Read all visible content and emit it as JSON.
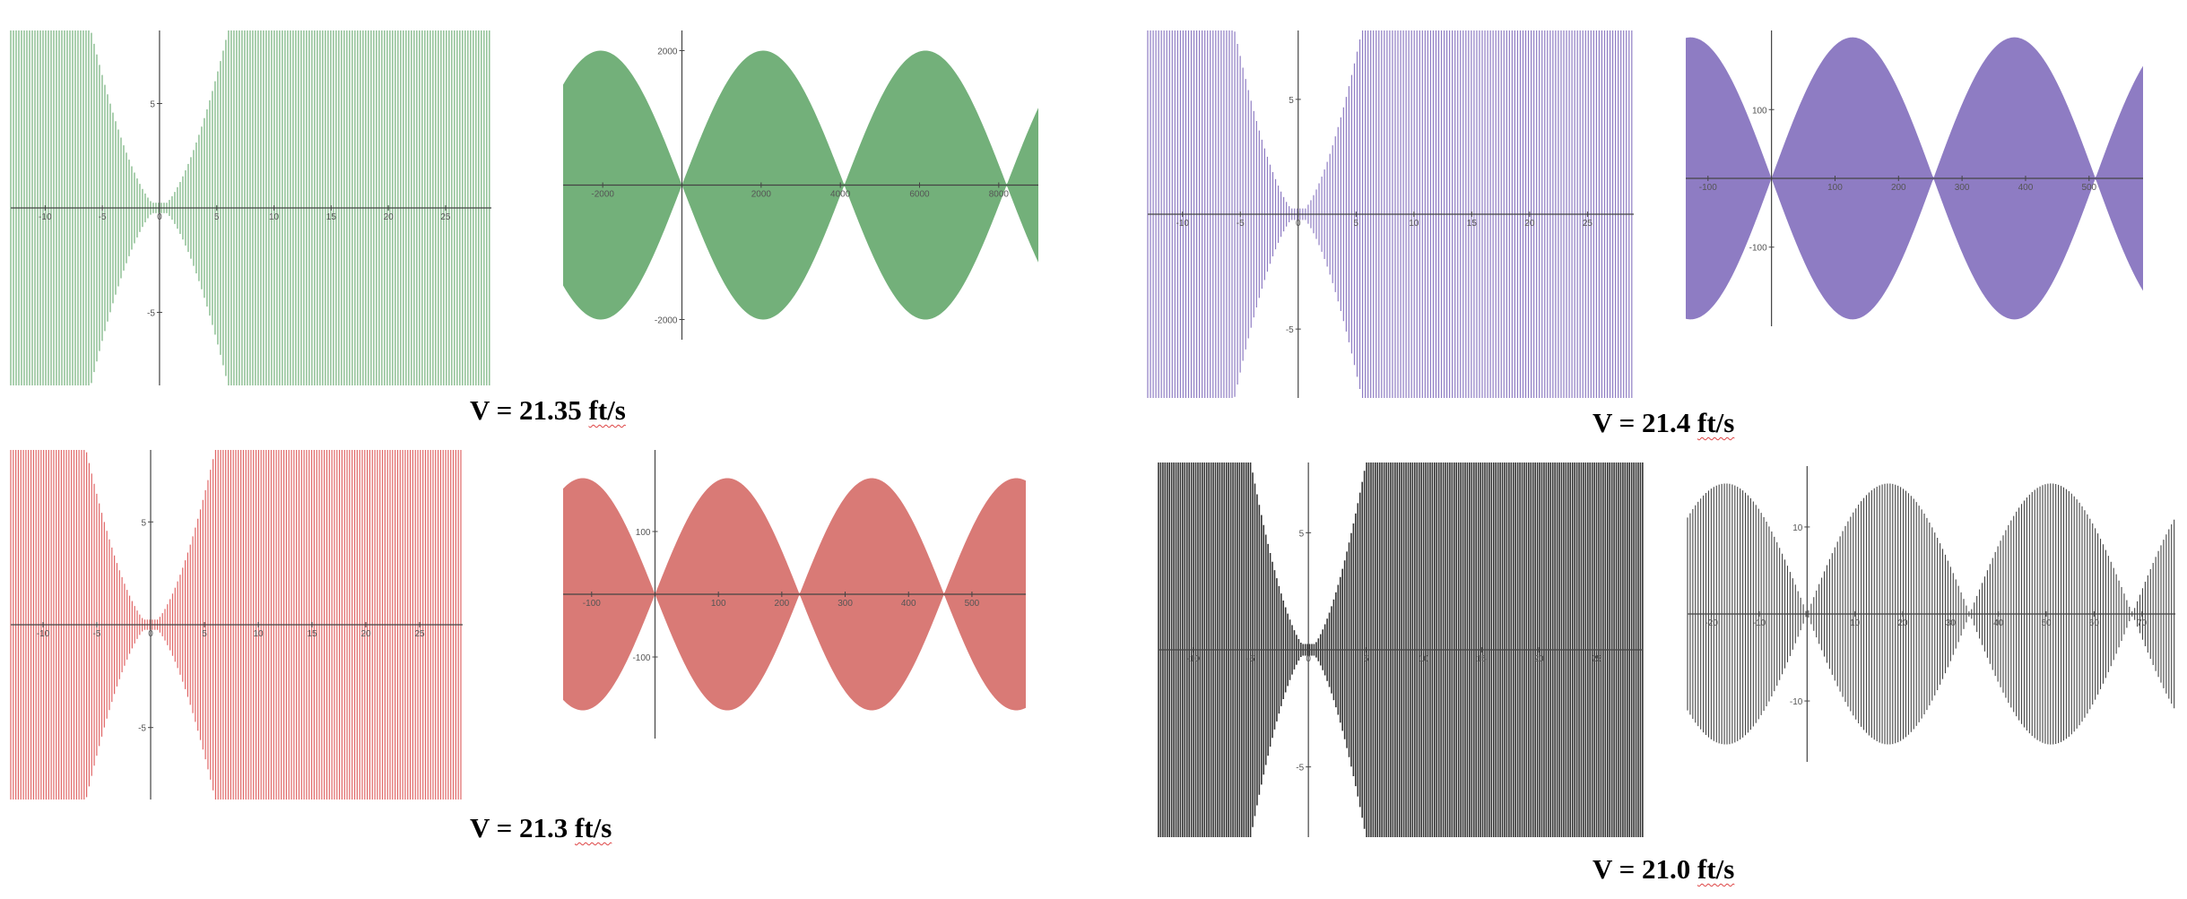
{
  "colors": {
    "axis": "#444444"
  },
  "captions": [
    {
      "v": "V = 21.35 ",
      "unit": "ft/s"
    },
    {
      "v": "V = 21.4 ",
      "unit": "ft/s"
    },
    {
      "v": "V = 21.3 ",
      "unit": "ft/s"
    },
    {
      "v": "V = 21.0 ",
      "unit": "ft/s"
    }
  ],
  "chart_data": [
    {
      "type": "line",
      "color": "#73b07a",
      "style": "lines",
      "xlim": [
        -13,
        29
      ],
      "ylim": [
        -8.5,
        8.5
      ],
      "xticks": [
        "-10",
        "-5",
        "0",
        "5",
        "10",
        "15",
        "20",
        "25"
      ],
      "yticks": [
        "-5",
        "5"
      ],
      "envelope": {
        "amplitude": 8.5,
        "center": 0,
        "half_period": 6.0
      }
    },
    {
      "type": "area",
      "color": "#73b07a",
      "xlim": [
        -3000,
        9000
      ],
      "ylim": [
        -2300,
        2300
      ],
      "xticks": [
        "-2000",
        "2000",
        "4000",
        "6000",
        "8000"
      ],
      "yticks": [
        "2000",
        "-2000"
      ],
      "envelope": {
        "amplitude": 2000,
        "zeros": [
          0,
          4100,
          8200
        ]
      }
    },
    {
      "type": "line",
      "color": "#8e7cc3",
      "style": "lines",
      "xlim": [
        -13,
        29
      ],
      "ylim": [
        -8,
        8
      ],
      "xticks": [
        "-10",
        "-5",
        "0",
        "5",
        "10",
        "15",
        "20",
        "25"
      ],
      "yticks": [
        "5",
        "-5"
      ],
      "envelope": {
        "amplitude": 8,
        "center": 0,
        "half_period": 5.5
      }
    },
    {
      "type": "area",
      "color": "#8e7cc3",
      "xlim": [
        -135,
        585
      ],
      "ylim": [
        -215,
        215
      ],
      "xticks": [
        "-100",
        "100",
        "200",
        "300",
        "400",
        "500"
      ],
      "yticks": [
        "100",
        "-100"
      ],
      "envelope": {
        "amplitude": 205,
        "zeros": [
          0,
          255,
          510
        ]
      }
    },
    {
      "type": "line",
      "color": "#e06666",
      "style": "lines",
      "xlim": [
        -13,
        29
      ],
      "ylim": [
        -8.5,
        8.5
      ],
      "xticks": [
        "-10",
        "-5",
        "0",
        "5",
        "10",
        "15",
        "20",
        "25"
      ],
      "yticks": [
        "5",
        "-5"
      ],
      "envelope": {
        "amplitude": 8.5,
        "center": 0,
        "half_period": 6.0
      }
    },
    {
      "type": "area",
      "color": "#d97a76",
      "xlim": [
        -145,
        585
      ],
      "ylim": [
        -230,
        230
      ],
      "xticks": [
        "-100",
        "100",
        "200",
        "300",
        "400",
        "500"
      ],
      "yticks": [
        "100",
        "-100"
      ],
      "envelope": {
        "amplitude": 185,
        "zeros": [
          0,
          228,
          456
        ]
      }
    },
    {
      "type": "line",
      "color": "#333333",
      "style": "dense",
      "xlim": [
        -13,
        29
      ],
      "ylim": [
        -8,
        8
      ],
      "xticks": [
        "-10",
        "-5",
        "0",
        "5",
        "10",
        "15",
        "20",
        "25"
      ],
      "yticks": [
        "5",
        "-5"
      ],
      "envelope": {
        "amplitude": 8,
        "center": 0,
        "half_period": 5.0,
        "flat_after": 29
      }
    },
    {
      "type": "area",
      "color": "#444444",
      "style": "dense",
      "xlim": [
        -25,
        77
      ],
      "ylim": [
        -17,
        17
      ],
      "xticks": [
        "-20",
        "-10",
        "10",
        "20",
        "30",
        "40",
        "50",
        "60",
        "70"
      ],
      "yticks": [
        "10",
        "-10"
      ],
      "envelope": {
        "amplitude": 15,
        "zeros": [
          0,
          34,
          68
        ]
      }
    }
  ]
}
